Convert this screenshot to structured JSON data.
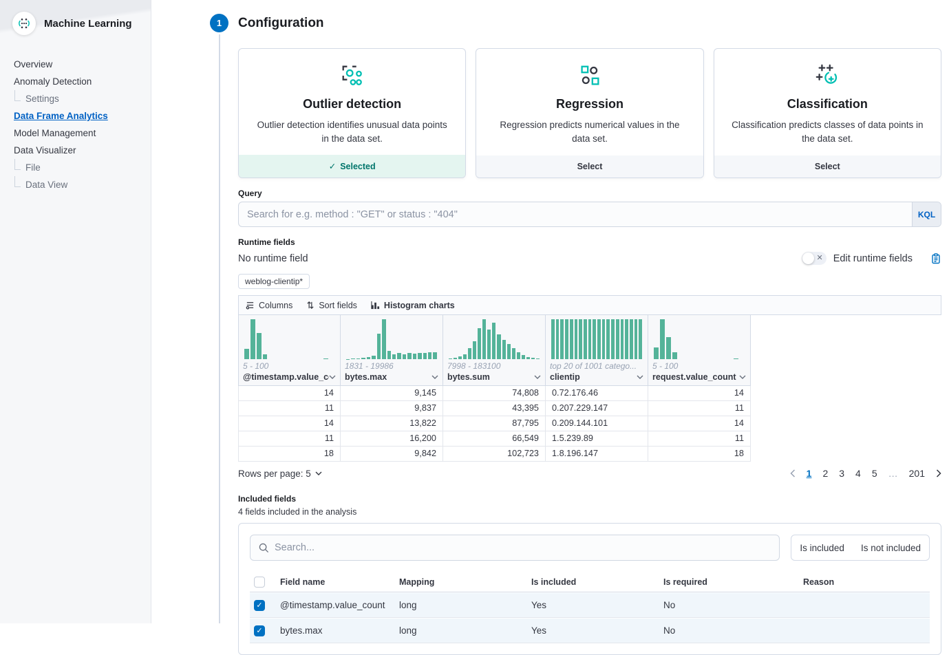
{
  "colors": {
    "primary": "#0071c2",
    "histogram_bar": "#54b399",
    "selected_text": "#00756b",
    "selected_bg": "#e4f5f0",
    "active_link": "#0061c4"
  },
  "sidebar": {
    "app_title": "Machine Learning",
    "items": [
      {
        "label": "Overview"
      },
      {
        "label": "Anomaly Detection"
      },
      {
        "label": "Settings"
      },
      {
        "label": "Data Frame Analytics"
      },
      {
        "label": "Model Management"
      },
      {
        "label": "Data Visualizer"
      },
      {
        "label": "File"
      },
      {
        "label": "Data View"
      }
    ]
  },
  "step": {
    "number": "1",
    "title": "Configuration"
  },
  "cards": [
    {
      "title": "Outlier detection",
      "description": "Outlier detection identifies unusual data points in the data set.",
      "footer_label": "Selected",
      "selected": true,
      "icon": "outlier-detection-icon"
    },
    {
      "title": "Regression",
      "description": "Regression predicts numerical values in the data set.",
      "footer_label": "Select",
      "selected": false,
      "icon": "regression-icon"
    },
    {
      "title": "Classification",
      "description": "Classification predicts classes of data points in the data set.",
      "footer_label": "Select",
      "selected": false,
      "icon": "classification-icon"
    }
  ],
  "query": {
    "label": "Query",
    "placeholder": "Search for e.g. method : \"GET\" or status : \"404\"",
    "language_button": "KQL"
  },
  "runtime_fields": {
    "label": "Runtime fields",
    "value": "No runtime field",
    "toggle_label": "Edit runtime fields",
    "toggle_state": "off"
  },
  "index_badge": "weblog-clientip*",
  "grid": {
    "toolbar": [
      {
        "label": "Columns",
        "icon": "columns-icon"
      },
      {
        "label": "Sort fields",
        "icon": "sort-icon"
      },
      {
        "label": "Histogram charts",
        "icon": "histogram-icon"
      }
    ],
    "columns": [
      {
        "name": "@timestamp.value_cou",
        "range": "5 - 100",
        "bars": [
          26,
          100,
          66,
          12,
          0,
          0,
          0,
          0,
          0,
          0,
          0,
          0,
          0,
          2,
          0
        ]
      },
      {
        "name": "bytes.max",
        "range": "1831 - 19986",
        "bars": [
          1,
          2,
          2,
          3,
          5,
          9,
          64,
          100,
          21,
          13,
          16,
          13,
          16,
          14,
          16,
          15,
          17,
          18
        ]
      },
      {
        "name": "bytes.sum",
        "range": "7998 - 183100",
        "bars": [
          2,
          3,
          8,
          12,
          28,
          45,
          78,
          100,
          75,
          92,
          62,
          48,
          38,
          28,
          18,
          10,
          5,
          3,
          2
        ]
      },
      {
        "name": "clientip",
        "range": "top 20 of 1001 catego...",
        "bars": [
          100,
          100,
          100,
          100,
          100,
          100,
          100,
          100,
          100,
          100,
          100,
          100,
          100,
          100,
          100,
          100,
          100,
          100,
          100,
          100
        ]
      },
      {
        "name": "request.value_count",
        "range": "5 - 100",
        "bars": [
          30,
          100,
          55,
          17,
          0,
          0,
          0,
          0,
          0,
          0,
          0,
          0,
          0,
          2,
          0
        ]
      }
    ],
    "rows": [
      [
        "14",
        "9,145",
        "74,808",
        "0.72.176.46",
        "14"
      ],
      [
        "11",
        "9,837",
        "43,395",
        "0.207.229.147",
        "11"
      ],
      [
        "14",
        "13,822",
        "87,795",
        "0.209.144.101",
        "14"
      ],
      [
        "11",
        "16,200",
        "66,549",
        "1.5.239.89",
        "11"
      ],
      [
        "18",
        "9,842",
        "102,723",
        "1.8.196.147",
        "18"
      ]
    ],
    "rows_per_page_label": "Rows per page: 5",
    "pagination": {
      "pages": [
        "1",
        "2",
        "3",
        "4",
        "5",
        "…",
        "201"
      ],
      "active_page": "1"
    }
  },
  "included_fields": {
    "label": "Included fields",
    "subtitle": "4 fields included in the analysis",
    "search_placeholder": "Search...",
    "filter_buttons": [
      {
        "label": "Is included"
      },
      {
        "label": "Is not included"
      }
    ],
    "table": {
      "headers": [
        "Field name",
        "Mapping",
        "Is included",
        "Is required",
        "Reason"
      ],
      "rows": [
        {
          "field": "@timestamp.value_count",
          "mapping": "long",
          "is_included": "Yes",
          "is_required": "No",
          "reason": "",
          "checked": true
        },
        {
          "field": "bytes.max",
          "mapping": "long",
          "is_included": "Yes",
          "is_required": "No",
          "reason": "",
          "checked": true
        }
      ]
    }
  }
}
